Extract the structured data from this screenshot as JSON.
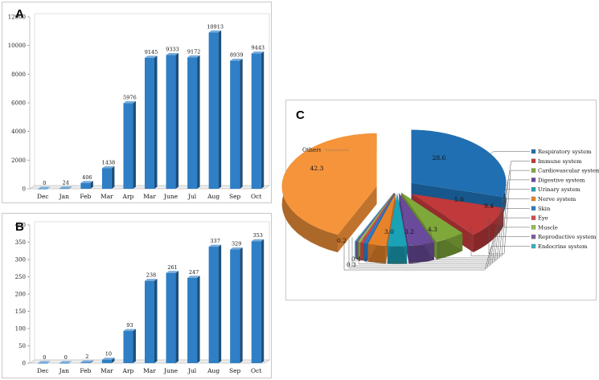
{
  "chart_data": [
    {
      "type": "bar",
      "panel_label": "A",
      "categories": [
        "Dec",
        "Jan",
        "Feb",
        "Mar",
        "Arp",
        "Mar",
        "June",
        "Jul",
        "Aug",
        "Sep",
        "Oct"
      ],
      "values": [
        0,
        24,
        406,
        1438,
        5976,
        9145,
        9333,
        9172,
        10913,
        8939,
        9443
      ],
      "value_labels": [
        "0",
        "24",
        "406",
        "1438",
        "5976",
        "9145",
        "9333",
        "9172",
        "10913",
        "8939",
        "9443"
      ],
      "ylim": [
        0,
        12000
      ],
      "yticks": [
        0,
        2000,
        4000,
        6000,
        8000,
        10000,
        12000
      ],
      "ytick_labels": [
        "0",
        "2000",
        "4000",
        "6000",
        "8000",
        "10000",
        "12000"
      ],
      "grid": false,
      "bar_color": "#2f7fc6"
    },
    {
      "type": "bar",
      "panel_label": "B",
      "categories": [
        "Dec",
        "Jan",
        "Feb",
        "Mar",
        "Arp",
        "Mar",
        "June",
        "Jul",
        "Aug",
        "Sep",
        "Oct"
      ],
      "values": [
        0,
        0,
        2,
        10,
        93,
        238,
        261,
        247,
        337,
        329,
        353
      ],
      "value_labels": [
        "0",
        "0",
        "2",
        "10",
        "93",
        "238",
        "261",
        "247",
        "337",
        "329",
        "353"
      ],
      "ylim": [
        0,
        400
      ],
      "yticks": [
        0,
        50,
        100,
        150,
        200,
        250,
        300,
        350,
        400
      ],
      "ytick_labels": [
        "0",
        "50",
        "100",
        "150",
        "200",
        "250",
        "300",
        "350",
        "400"
      ],
      "grid": false,
      "bar_color": "#2f7fc6"
    },
    {
      "type": "pie",
      "panel_label": "C",
      "legend_position": "right",
      "slices": [
        {
          "name": "Respiratory system",
          "value": 28.6,
          "label": "28.6",
          "color": "#1f6fb2"
        },
        {
          "name": "Immune system",
          "value": 9.4,
          "label": "9.4",
          "color": "#c0393b"
        },
        {
          "name": "Cardiovascular system",
          "value": 5.0,
          "label": "5.0",
          "color": "#7fa83a"
        },
        {
          "name": "Digestive system",
          "value": 4.3,
          "label": "4.3",
          "color": "#6a4a9a"
        },
        {
          "name": "Urinary system",
          "value": 3.2,
          "label": "3.2",
          "color": "#1aa2b7"
        },
        {
          "name": "Nerve system",
          "value": 3.0,
          "label": "3.0",
          "color": "#e8832a"
        },
        {
          "name": "Skin",
          "value": 0.6,
          "label": "",
          "color": "#2a7ccb"
        },
        {
          "name": "Eye",
          "value": 0.5,
          "label": "",
          "color": "#d24a4a"
        },
        {
          "name": "Muscle",
          "value": 0.4,
          "label": "0.4",
          "color": "#92c050"
        },
        {
          "name": "Reproductive system",
          "value": 0.3,
          "label": "0.3",
          "color": "#7f5aa8"
        },
        {
          "name": "Endocrine system",
          "value": 0.2,
          "label": "0.2",
          "color": "#33b3c7"
        },
        {
          "name": "Others",
          "value": 42.3,
          "label": "42.3",
          "color": "#f5943a"
        }
      ]
    }
  ]
}
